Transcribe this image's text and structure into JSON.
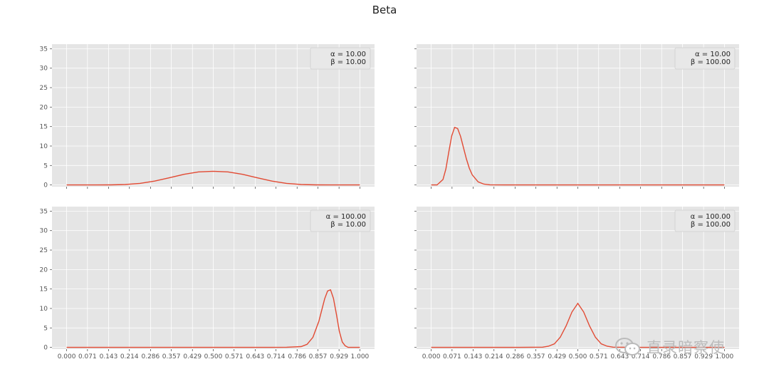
{
  "figure_title": "Beta",
  "watermark": {
    "text": "直录暗察使",
    "icon": "wechat-icon"
  },
  "style": {
    "background": "#e5e5e5",
    "grid": "#ffffff",
    "line": "#e24a33",
    "text": "#555555"
  },
  "chart_data": [
    {
      "type": "line",
      "panel": "top-left",
      "title": "",
      "xlabel": "",
      "ylabel": "",
      "ylim": [
        0,
        35
      ],
      "xlim": [
        0,
        1
      ],
      "grid": true,
      "legend_position": "top-right",
      "yticks": [
        "0",
        "5",
        "10",
        "15",
        "20",
        "25",
        "30",
        "35"
      ],
      "xticks": [],
      "legend": [
        "α = 10.00",
        "β = 10.00"
      ],
      "alpha": 10,
      "beta": 10,
      "series": [
        {
          "x": [
            0.0,
            0.05,
            0.1,
            0.15,
            0.2,
            0.25,
            0.3,
            0.35,
            0.4,
            0.45,
            0.5,
            0.55,
            0.6,
            0.65,
            0.7,
            0.75,
            0.8,
            0.85,
            0.9,
            0.95,
            1.0
          ],
          "y": [
            0.0,
            0.0,
            0.0,
            0.02,
            0.12,
            0.41,
            0.99,
            1.83,
            2.73,
            3.36,
            3.52,
            3.36,
            2.73,
            1.83,
            0.99,
            0.41,
            0.12,
            0.02,
            0.0,
            0.0,
            0.0
          ]
        }
      ]
    },
    {
      "type": "line",
      "panel": "top-right",
      "title": "",
      "xlabel": "",
      "ylabel": "",
      "ylim": [
        0,
        35
      ],
      "xlim": [
        0,
        1
      ],
      "grid": true,
      "legend_position": "top-right",
      "yticks": [],
      "xticks": [],
      "legend": [
        "α = 10.00",
        "β = 100.00"
      ],
      "alpha": 10,
      "beta": 100,
      "series": [
        {
          "x": [
            0.0,
            0.02,
            0.04,
            0.05,
            0.06,
            0.07,
            0.08,
            0.09,
            0.1,
            0.11,
            0.12,
            0.13,
            0.14,
            0.16,
            0.18,
            0.2,
            0.25,
            0.3,
            0.4,
            0.6,
            0.8,
            1.0
          ],
          "y": [
            0.0,
            0.01,
            1.4,
            4.1,
            8.5,
            12.6,
            14.8,
            14.5,
            12.5,
            9.6,
            6.7,
            4.3,
            2.6,
            0.8,
            0.2,
            0.04,
            0.0,
            0.0,
            0.0,
            0.0,
            0.0,
            0.0
          ]
        }
      ]
    },
    {
      "type": "line",
      "panel": "bottom-left",
      "title": "",
      "xlabel": "",
      "ylabel": "",
      "ylim": [
        0,
        35
      ],
      "xlim": [
        0,
        1
      ],
      "grid": true,
      "legend_position": "top-right",
      "yticks": [
        "0",
        "5",
        "10",
        "15",
        "20",
        "25",
        "30",
        "35"
      ],
      "xticks": [
        "0.000",
        "0.071",
        "0.143",
        "0.214",
        "0.286",
        "0.357",
        "0.429",
        "0.500",
        "0.571",
        "0.643",
        "0.714",
        "0.786",
        "0.857",
        "0.929",
        "1.000"
      ],
      "legend": [
        "α = 100.00",
        "β = 10.00"
      ],
      "alpha": 100,
      "beta": 10,
      "series": [
        {
          "x": [
            0.0,
            0.2,
            0.4,
            0.6,
            0.7,
            0.75,
            0.8,
            0.82,
            0.84,
            0.86,
            0.87,
            0.88,
            0.89,
            0.9,
            0.91,
            0.92,
            0.93,
            0.94,
            0.95,
            0.96,
            0.98,
            1.0
          ],
          "y": [
            0.0,
            0.0,
            0.0,
            0.0,
            0.0,
            0.04,
            0.2,
            0.8,
            2.6,
            6.7,
            9.6,
            12.5,
            14.5,
            14.8,
            12.6,
            8.5,
            4.1,
            1.4,
            0.4,
            0.01,
            0.0,
            0.0
          ]
        }
      ]
    },
    {
      "type": "line",
      "panel": "bottom-right",
      "title": "",
      "xlabel": "",
      "ylabel": "",
      "ylim": [
        0,
        35
      ],
      "xlim": [
        0,
        1
      ],
      "grid": true,
      "legend_position": "top-right",
      "yticks": [],
      "xticks": [
        "0.000",
        "0.071",
        "0.143",
        "0.214",
        "0.286",
        "0.357",
        "0.429",
        "0.500",
        "0.571",
        "0.643",
        "0.714",
        "0.786",
        "0.857",
        "0.929",
        "1.000"
      ],
      "legend": [
        "α = 100.00",
        "β = 100.00"
      ],
      "alpha": 100,
      "beta": 100,
      "series": [
        {
          "x": [
            0.0,
            0.3,
            0.38,
            0.4,
            0.42,
            0.44,
            0.46,
            0.48,
            0.5,
            0.52,
            0.54,
            0.56,
            0.58,
            0.6,
            0.62,
            0.7,
            1.0
          ],
          "y": [
            0.0,
            0.0,
            0.06,
            0.3,
            0.9,
            2.6,
            5.5,
            9.1,
            11.3,
            9.1,
            5.5,
            2.6,
            0.9,
            0.3,
            0.06,
            0.0,
            0.0
          ]
        }
      ]
    }
  ]
}
